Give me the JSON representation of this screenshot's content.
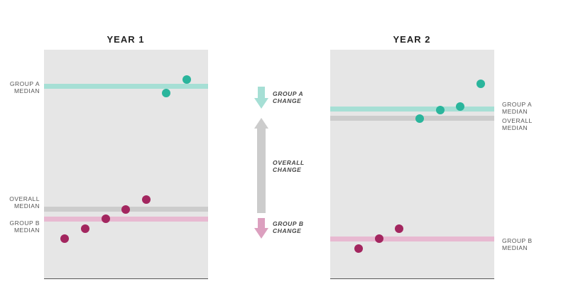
{
  "panels": [
    {
      "title": "YEAR  1",
      "labels": {
        "group_a": [
          "GROUP A",
          "MEDIAN"
        ],
        "overall": [
          "OVERALL",
          "MEDIAN"
        ],
        "group_b": [
          "GROUP B",
          "MEDIAN"
        ]
      }
    },
    {
      "title": "YEAR 2",
      "labels": {
        "group_a": [
          "GROUP A",
          "MEDIAN"
        ],
        "overall": [
          "OVERALL",
          "MEDIAN"
        ],
        "group_b": [
          "GROUP B",
          "MEDIAN"
        ]
      }
    }
  ],
  "changes": {
    "group_a": [
      "GROUP A",
      "CHANGE"
    ],
    "overall": [
      "OVERALL",
      "CHANGE"
    ],
    "group_b": [
      "GROUP B",
      "CHANGE"
    ]
  },
  "colors": {
    "group_a_line": "#a6dfd5",
    "group_a_dot": "#2ab59c",
    "group_b_line": "#e8b9d1",
    "group_b_dot": "#a3265f",
    "overall_line": "#cccccc",
    "panel_bg": "#e6e6e6",
    "arrow_a": "#a6dfd5",
    "arrow_overall": "#cccccc",
    "arrow_b": "#dca0bf"
  },
  "icons": {
    "group_a_change": "arrow-down-icon",
    "overall_change": "arrow-up-icon",
    "group_b_change": "arrow-down-icon"
  }
}
